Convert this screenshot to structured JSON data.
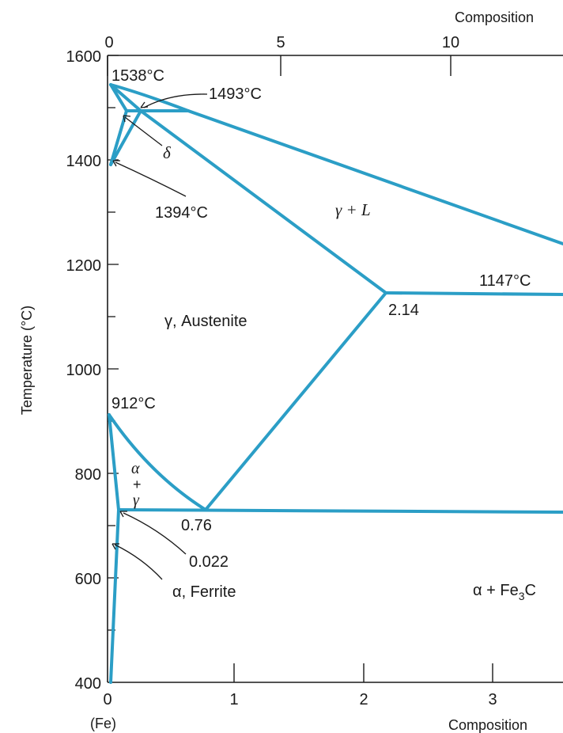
{
  "axes": {
    "top_label": "Composition",
    "bottom_label": "Composition",
    "left_label": "Temperature (°C)",
    "fe_label": "(Fe)",
    "top_ticks": [
      "0",
      "5",
      "10"
    ],
    "bottom_ticks": [
      "0",
      "1",
      "2",
      "3"
    ],
    "y_ticks": [
      "1600",
      "1400",
      "1200",
      "1000",
      "800",
      "600",
      "400"
    ]
  },
  "points": {
    "t1538": "1538°C",
    "t1493": "1493°C",
    "t1394": "1394°C",
    "t1147": "1147°C",
    "t912": "912°C",
    "c214": "2.14",
    "c076": "0.76",
    "c0022": "0.022"
  },
  "regions": {
    "gamma_l": "γ + L",
    "delta": "δ",
    "austenite": "γ, Austenite",
    "alpha": "α",
    "plus": "+",
    "gamma": "γ",
    "ferrite": "α, Ferrite",
    "alpha_fe3c_a": "α + Fe",
    "alpha_fe3c_sub": "3",
    "alpha_fe3c_b": "C"
  },
  "colors": {
    "phase_line": "#2b9ec6",
    "axis": "#1a1a1a"
  }
}
